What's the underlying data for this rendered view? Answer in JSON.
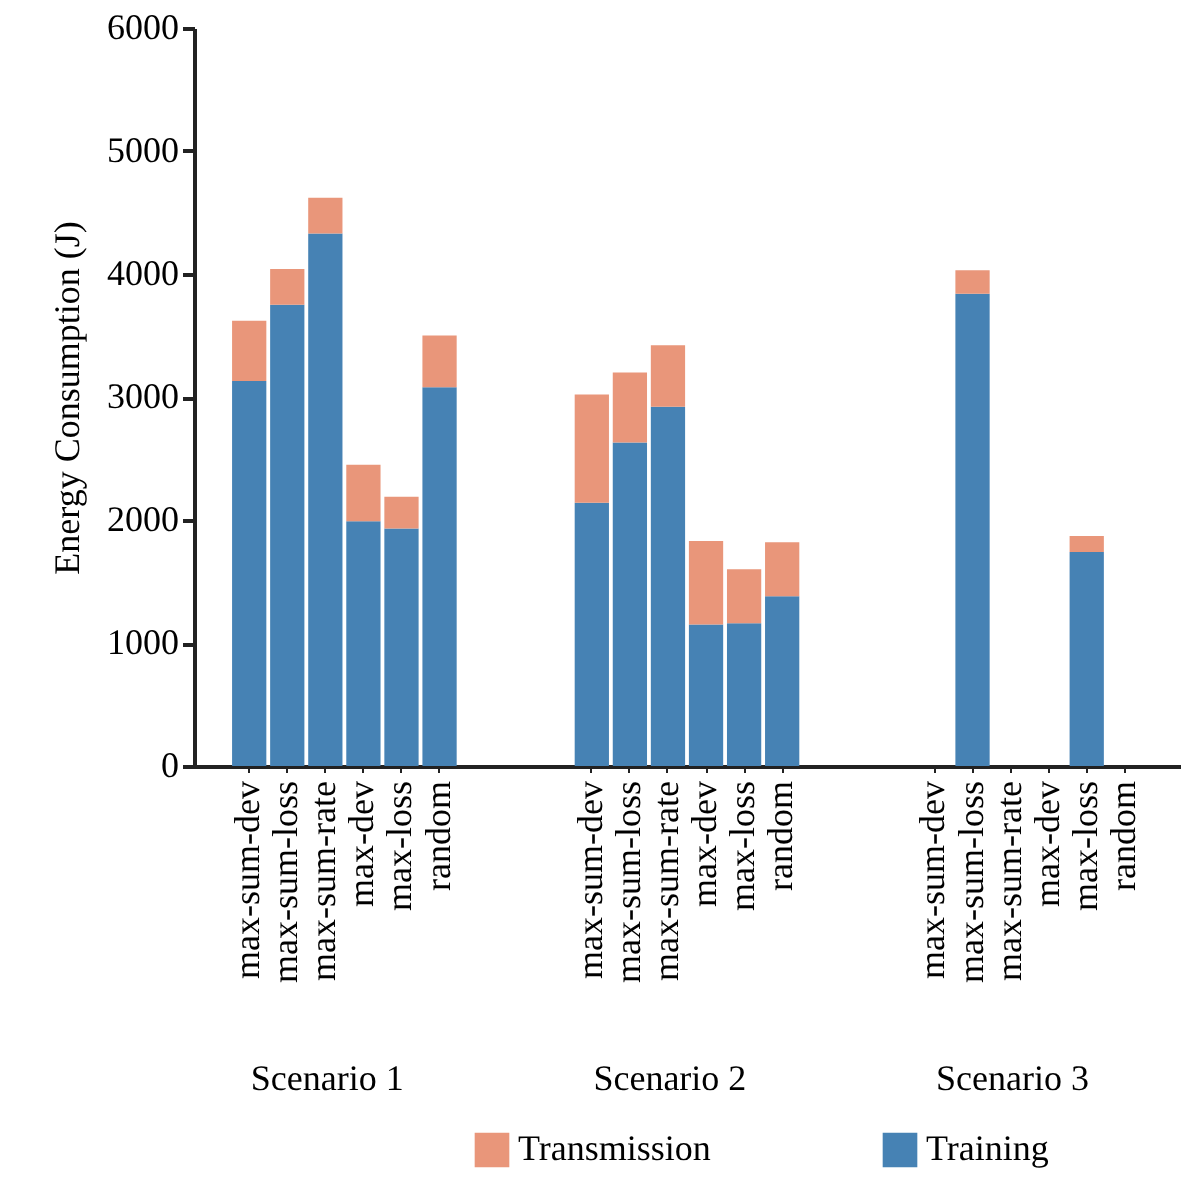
{
  "chart_data": {
    "type": "bar",
    "stacked": true,
    "ylabel": "Energy Consumption (J)",
    "categories": [
      "max-sum-dev",
      "max-sum-loss",
      "max-sum-rate",
      "max-dev",
      "max-loss",
      "random",
      null,
      null,
      null,
      "max-sum-dev",
      "max-sum-loss",
      "max-sum-rate",
      "max-dev",
      "max-loss",
      "random",
      null,
      null,
      null,
      "max-sum-dev",
      "max-sum-loss",
      "max-sum-rate",
      "max-dev",
      "max-loss",
      "random"
    ],
    "series": [
      {
        "name": "Training",
        "color": "#4682b4",
        "values": [
          3130,
          3750,
          4330,
          1990,
          1930,
          3080,
          null,
          null,
          null,
          2140,
          2630,
          2920,
          1150,
          1160,
          1380,
          null,
          null,
          null,
          null,
          3840,
          null,
          null,
          1740,
          null
        ]
      },
      {
        "name": "Transmission",
        "color": "#e9967a",
        "values": [
          490,
          290,
          290,
          460,
          260,
          420,
          null,
          null,
          null,
          880,
          570,
          500,
          680,
          440,
          440,
          null,
          null,
          null,
          null,
          190,
          null,
          null,
          130,
          null
        ]
      }
    ],
    "ylim": [
      0,
      6000
    ],
    "yticks": [
      0,
      1000,
      2000,
      3000,
      4000,
      5000,
      6000
    ],
    "grid": false,
    "legend": "bottom",
    "annotations": [
      "Scenario 1",
      "Scenario 2",
      "Scenario 3"
    ]
  }
}
